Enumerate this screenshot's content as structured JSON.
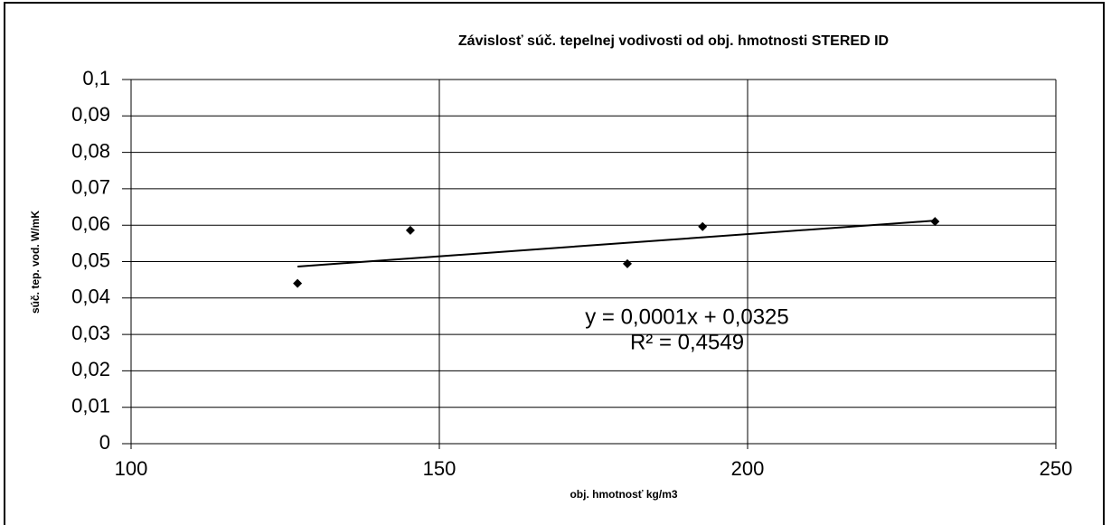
{
  "chart_data": {
    "type": "scatter",
    "title": "Závislosť súč. tepelnej vodivosti od obj. hmotnosti STERED ID",
    "x_label": "obj. hmotnosť kg/m3",
    "y_label": "súč. tep. vod. W/mK",
    "annotations": [
      "y = 0,0001x + 0,0325",
      "R² = 0,4549"
    ],
    "trendline": true,
    "grid": true,
    "color": "#000000",
    "x": [
      127,
      145.3,
      180.5,
      192.7,
      230.4
    ],
    "values": [
      0.044,
      0.0586,
      0.0494,
      0.0596,
      0.061
    ],
    "xlim": [
      100,
      250
    ],
    "xticks": [
      100,
      150,
      200,
      250
    ],
    "ylim": [
      0,
      0.1
    ],
    "yticks": [
      0,
      {
        "value": 0.01,
        "label": "0,01"
      },
      {
        "value": 0.02,
        "label": "0,02"
      },
      {
        "value": 0.03,
        "label": "0,03"
      },
      {
        "value": 0.04,
        "label": "0,04"
      },
      {
        "value": 0.05,
        "label": "0,05"
      },
      {
        "value": 0.06,
        "label": "0,06"
      },
      {
        "value": 0.07,
        "label": "0,07"
      },
      {
        "value": 0.08,
        "label": "0,08"
      },
      {
        "value": 0.09,
        "label": "0,09"
      },
      {
        "value": 0.1,
        "label": "0,1"
      }
    ]
  }
}
